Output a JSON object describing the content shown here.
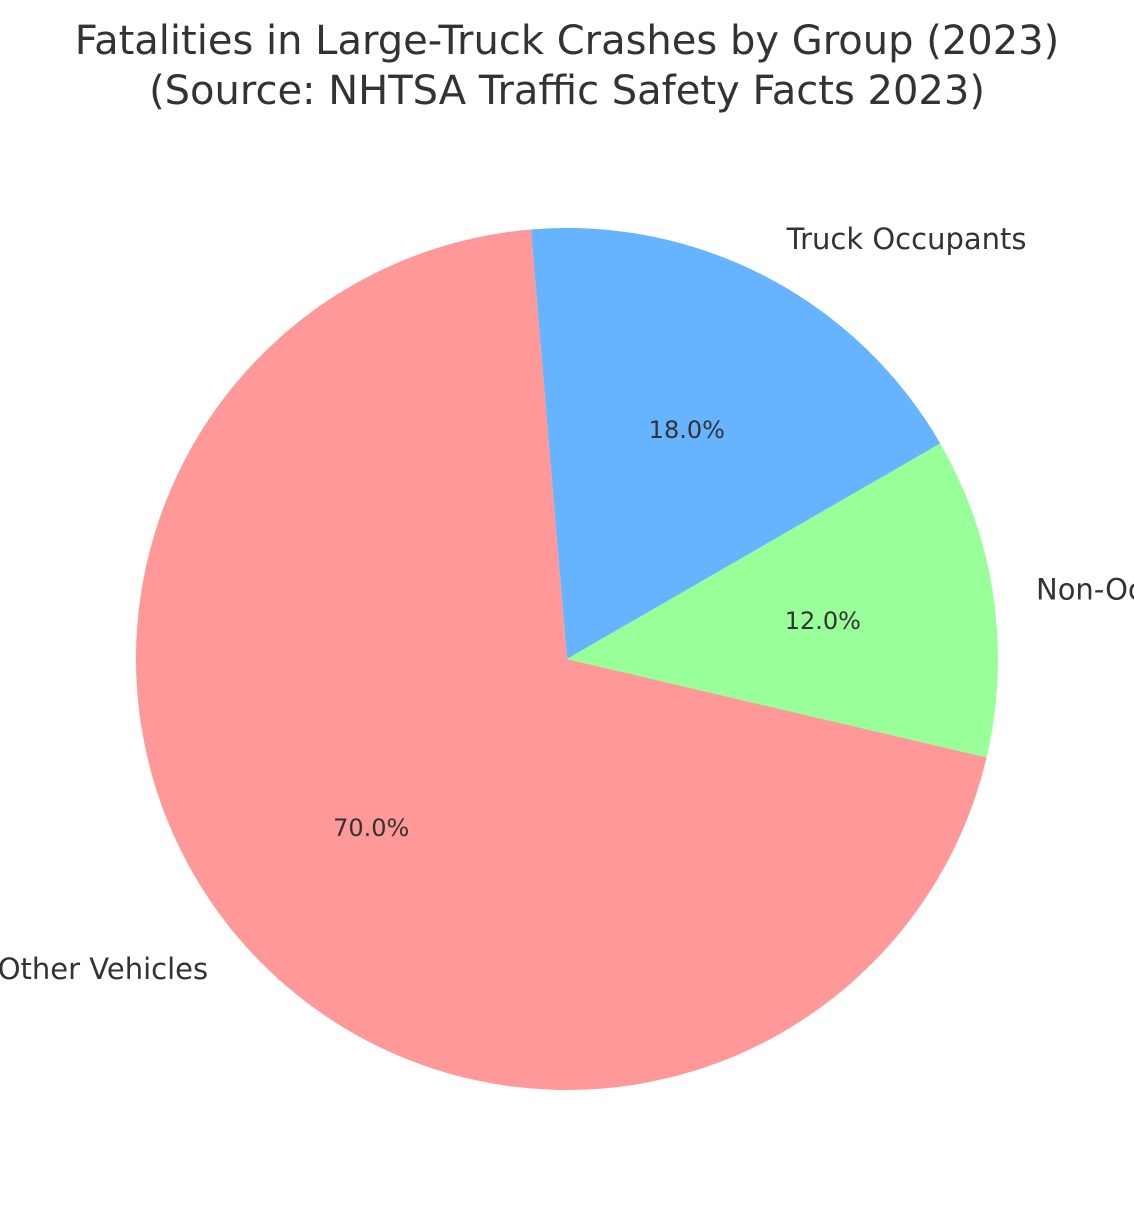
{
  "chart_data": {
    "type": "pie",
    "title_lines": [
      "Fatalities in Large-Truck Crashes by Group (2023)",
      "(Source: NHTSA Traffic Safety Facts 2023)"
    ],
    "categories": [
      "Truck Occupants",
      "Occupants of Other Vehicles",
      "Non-Occupants"
    ],
    "values": [
      18.0,
      70.0,
      12.0
    ],
    "value_labels": [
      "18.0%",
      "70.0%",
      "12.0%"
    ],
    "colors": [
      "#66b3ff",
      "#ff9999",
      "#99ff99"
    ],
    "legend": "none"
  }
}
